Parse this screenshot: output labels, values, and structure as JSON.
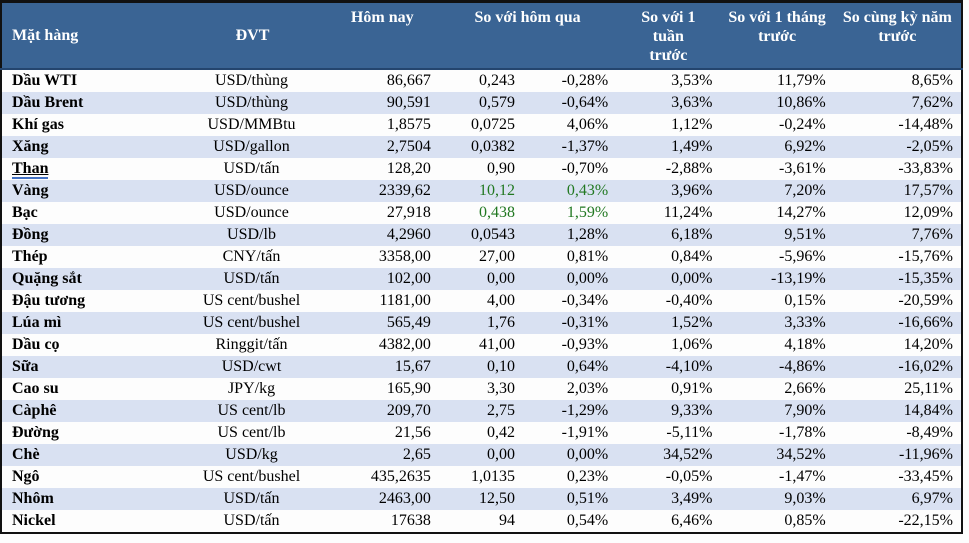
{
  "colors": {
    "header_bg": "#3a6494",
    "header_text": "#ffffff",
    "row_band": "#d9e1f2",
    "positive_green": "#217821",
    "table_border": "#111111",
    "link_underline": "#4472c4"
  },
  "table": {
    "headers": {
      "commodity": "Mặt hàng",
      "unit": "ĐVT",
      "today": "Hôm nay",
      "vs_yesterday": "So với hôm qua",
      "vs_week": "So với 1 tuần trước",
      "vs_month": "So với 1 tháng trước",
      "vs_year": "So cùng kỳ năm trước"
    },
    "rows": [
      {
        "name": "Dầu WTI",
        "unit": "USD/thùng",
        "today": "86,667",
        "change": "0,243",
        "change_pct": "-0,28%",
        "week": "3,53%",
        "month": "11,79%",
        "year": "8,65%"
      },
      {
        "name": "Dầu Brent",
        "unit": "USD/thùng",
        "today": "90,591",
        "change": "0,579",
        "change_pct": "-0,64%",
        "week": "3,63%",
        "month": "10,86%",
        "year": "7,62%"
      },
      {
        "name": "Khí gas",
        "unit": "USD/MMBtu",
        "today": "1,8575",
        "change": "0,0725",
        "change_pct": "4,06%",
        "week": "1,12%",
        "month": "-0,24%",
        "year": "-14,48%"
      },
      {
        "name": "Xăng",
        "unit": "USD/gallon",
        "today": "2,7504",
        "change": "0,0382",
        "change_pct": "-1,37%",
        "week": "1,49%",
        "month": "6,92%",
        "year": "-2,05%"
      },
      {
        "name": "Than",
        "unit": "USD/tấn",
        "today": "128,20",
        "change": "0,90",
        "change_pct": "-0,70%",
        "week": "-2,88%",
        "month": "-3,61%",
        "year": "-33,83%",
        "underlined": true
      },
      {
        "name": "Vàng",
        "unit": "USD/ounce",
        "today": "2339,62",
        "change": "10,12",
        "change_pct": "0,43%",
        "week": "3,96%",
        "month": "7,20%",
        "year": "17,57%",
        "change_color": "green"
      },
      {
        "name": "Bạc",
        "unit": "USD/ounce",
        "today": "27,918",
        "change": "0,438",
        "change_pct": "1,59%",
        "week": "11,24%",
        "month": "14,27%",
        "year": "12,09%",
        "change_color": "green"
      },
      {
        "name": "Đồng",
        "unit": "USD/lb",
        "today": "4,2960",
        "change": "0,0543",
        "change_pct": "1,28%",
        "week": "6,18%",
        "month": "9,51%",
        "year": "7,76%"
      },
      {
        "name": "Thép",
        "unit": "CNY/tấn",
        "today": "3358,00",
        "change": "27,00",
        "change_pct": "0,81%",
        "week": "0,84%",
        "month": "-5,96%",
        "year": "-15,76%"
      },
      {
        "name": "Quặng sắt",
        "unit": "USD/tấn",
        "today": "102,00",
        "change": "0,00",
        "change_pct": "0,00%",
        "week": "0,00%",
        "month": "-13,19%",
        "year": "-15,35%"
      },
      {
        "name": "Đậu tương",
        "unit": "US cent/bushel",
        "today": "1181,00",
        "change": "4,00",
        "change_pct": "-0,34%",
        "week": "-0,40%",
        "month": "0,15%",
        "year": "-20,59%"
      },
      {
        "name": "Lúa mì",
        "unit": "US cent/bushel",
        "today": "565,49",
        "change": "1,76",
        "change_pct": "-0,31%",
        "week": "1,52%",
        "month": "3,33%",
        "year": "-16,66%"
      },
      {
        "name": "Dầu cọ",
        "unit": "Ringgit/tấn",
        "today": "4382,00",
        "change": "41,00",
        "change_pct": "-0,93%",
        "week": "1,06%",
        "month": "4,18%",
        "year": "14,20%"
      },
      {
        "name": "Sữa",
        "unit": "USD/cwt",
        "today": "15,67",
        "change": "0,10",
        "change_pct": "0,64%",
        "week": "-4,10%",
        "month": "-4,86%",
        "year": "-16,02%"
      },
      {
        "name": "Cao su",
        "unit": "JPY/kg",
        "today": "165,90",
        "change": "3,30",
        "change_pct": "2,03%",
        "week": "0,91%",
        "month": "2,66%",
        "year": "25,11%"
      },
      {
        "name": "Càphê",
        "unit": "US cent/lb",
        "today": "209,70",
        "change": "2,75",
        "change_pct": "-1,29%",
        "week": "9,33%",
        "month": "7,90%",
        "year": "14,84%"
      },
      {
        "name": "Đường",
        "unit": "US cent/lb",
        "today": "21,56",
        "change": "0,42",
        "change_pct": "-1,91%",
        "week": "-5,11%",
        "month": "-1,78%",
        "year": "-8,49%"
      },
      {
        "name": "Chè",
        "unit": "USD/kg",
        "today": "2,65",
        "change": "0,00",
        "change_pct": "0,00%",
        "week": "34,52%",
        "month": "34,52%",
        "year": "-11,96%"
      },
      {
        "name": "Ngô",
        "unit": "US cent/bushel",
        "today": "435,2635",
        "change": "1,0135",
        "change_pct": "0,23%",
        "week": "-0,05%",
        "month": "-1,47%",
        "year": "-33,45%"
      },
      {
        "name": "Nhôm",
        "unit": "USD/tấn",
        "today": "2463,00",
        "change": "12,50",
        "change_pct": "0,51%",
        "week": "3,49%",
        "month": "9,03%",
        "year": "6,97%"
      },
      {
        "name": "Nickel",
        "unit": "USD/tấn",
        "today": "17638",
        "change": "94",
        "change_pct": "0,54%",
        "week": "6,46%",
        "month": "0,85%",
        "year": "-22,15%"
      }
    ]
  }
}
